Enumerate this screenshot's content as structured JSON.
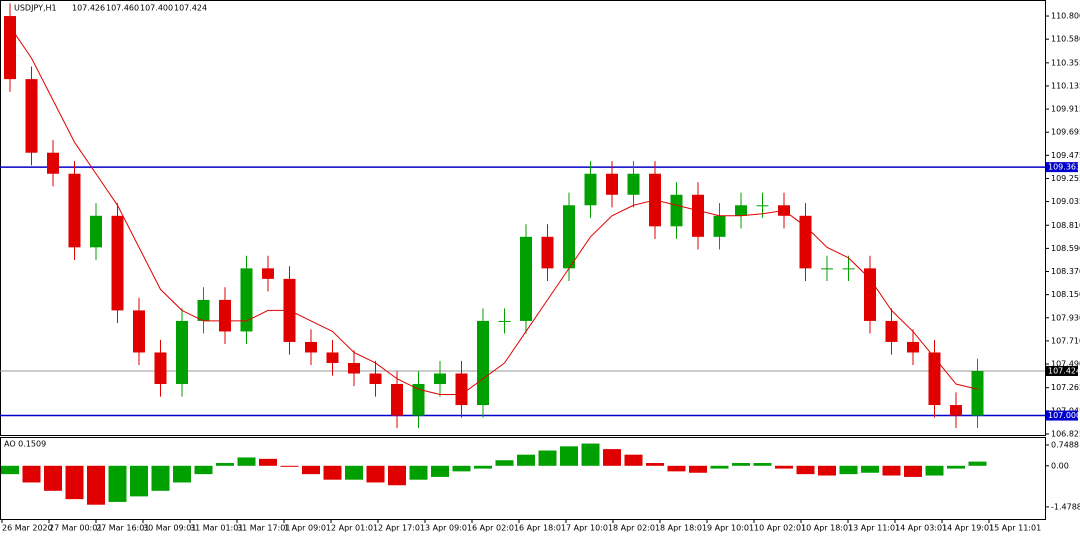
{
  "chart_data": [
    {
      "type": "candlestick",
      "title": "USDJPY,H1",
      "header_quotes": [
        "107.426",
        "107.460",
        "107.400",
        "107.424"
      ],
      "bull_color": "#00a000",
      "bear_color": "#e00000",
      "open": [
        110.8,
        110.2,
        109.5,
        109.3,
        108.6,
        108.9,
        108.0,
        107.6,
        107.3,
        107.9,
        108.1,
        107.8,
        108.4,
        108.3,
        107.7,
        107.6,
        107.5,
        107.4,
        107.3,
        107.0,
        107.3,
        107.4,
        107.1,
        107.9,
        107.9,
        108.7,
        108.4,
        109.0,
        109.3,
        109.1,
        109.3,
        108.8,
        109.1,
        108.7,
        108.9,
        109.0,
        109.0,
        108.9,
        108.4,
        108.4,
        108.4,
        107.9,
        107.7,
        107.6,
        107.1,
        107.0
      ],
      "high": [
        110.92,
        110.32,
        109.62,
        109.42,
        109.02,
        109.02,
        108.12,
        107.72,
        108.02,
        108.22,
        108.22,
        108.52,
        108.52,
        108.42,
        107.82,
        107.72,
        107.62,
        107.52,
        107.42,
        107.42,
        107.52,
        107.52,
        108.02,
        108.02,
        108.82,
        108.82,
        109.12,
        109.42,
        109.42,
        109.42,
        109.42,
        109.22,
        109.22,
        109.02,
        109.12,
        109.12,
        109.12,
        109.02,
        108.52,
        108.52,
        108.52,
        108.02,
        107.82,
        107.72,
        107.22,
        107.54
      ],
      "low": [
        110.08,
        109.38,
        109.18,
        108.48,
        108.48,
        107.88,
        107.48,
        107.18,
        107.18,
        107.78,
        107.68,
        107.68,
        108.18,
        107.58,
        107.48,
        107.38,
        107.28,
        107.18,
        106.88,
        106.88,
        107.18,
        106.98,
        106.98,
        107.78,
        107.78,
        108.28,
        108.28,
        108.88,
        108.98,
        108.98,
        108.68,
        108.68,
        108.58,
        108.58,
        108.78,
        108.88,
        108.78,
        108.28,
        108.28,
        108.28,
        107.78,
        107.58,
        107.48,
        106.98,
        106.88,
        106.88
      ],
      "close": [
        110.2,
        109.5,
        109.3,
        108.6,
        108.9,
        108.0,
        107.6,
        107.3,
        107.9,
        108.1,
        107.8,
        108.4,
        108.3,
        107.7,
        107.6,
        107.5,
        107.4,
        107.3,
        107.0,
        107.3,
        107.4,
        107.1,
        107.9,
        107.9,
        108.7,
        108.4,
        109.0,
        109.3,
        109.1,
        109.3,
        108.8,
        109.1,
        108.7,
        108.9,
        109.0,
        109.0,
        108.9,
        108.4,
        108.4,
        108.4,
        107.9,
        107.7,
        107.6,
        107.1,
        107.0,
        107.424
      ],
      "ma": [
        110.7,
        110.4,
        110.0,
        109.6,
        109.3,
        109.0,
        108.6,
        108.2,
        108.0,
        107.9,
        107.9,
        107.9,
        108.0,
        108.0,
        107.9,
        107.8,
        107.6,
        107.5,
        107.35,
        107.25,
        107.2,
        107.2,
        107.35,
        107.5,
        107.8,
        108.1,
        108.4,
        108.7,
        108.9,
        109.0,
        109.05,
        109.0,
        108.95,
        108.9,
        108.9,
        108.92,
        108.95,
        108.8,
        108.6,
        108.5,
        108.3,
        108.0,
        107.8,
        107.55,
        107.3,
        107.25
      ],
      "ma_color": "#e00000",
      "levels": [
        {
          "value": 109.363,
          "label": "109.363"
        },
        {
          "value": 107.0,
          "label": "107.000"
        }
      ],
      "level_color": "#0000cc",
      "current": {
        "value": 107.424,
        "label": "107.424"
      },
      "ylim": [
        106.815,
        110.905
      ],
      "yticks": [
        {
          "value": 110.8,
          "label": "110.800"
        },
        {
          "value": 110.58,
          "label": "110.580"
        },
        110.355,
        {
          "value": 110.135,
          "label": "110.135"
        },
        109.915,
        109.695,
        109.475,
        109.255,
        109.035,
        {
          "value": 108.81,
          "label": "108.810"
        },
        {
          "value": 108.59,
          "label": "108.590"
        },
        {
          "value": 108.37,
          "label": "108.370"
        },
        {
          "value": 108.15,
          "label": "108.150"
        },
        {
          "value": 107.93,
          "label": "107.930"
        },
        {
          "value": 107.71,
          "label": "107.710"
        },
        {
          "value": 107.49,
          "label": "107.490"
        },
        107.265,
        107.045,
        106.825
      ],
      "xlabels": [
        "26 Mar 2020",
        "27 Mar 00:01",
        "27 Mar 16:01",
        "30 Mar 09:01",
        "31 Mar 01:01",
        "31 Mar 17:01",
        "1 Apr 09:01",
        "2 Apr 01:01",
        "2 Apr 17:01",
        "3 Apr 09:01",
        "6 Apr 02:01",
        "6 Apr 18:01",
        "7 Apr 10:01",
        "8 Apr 02:01",
        "8 Apr 18:01",
        "9 Apr 10:01",
        "10 Apr 02:01",
        "10 Apr 18:01",
        "13 Apr 11:01",
        "14 Apr 03:01",
        "14 Apr 19:01",
        "15 Apr 11:01"
      ]
    },
    {
      "type": "ao",
      "title": "AO 0.1509",
      "up_color": "#00a000",
      "down_color": "#e00000",
      "values": [
        -0.3,
        -0.6,
        -0.9,
        -1.2,
        -1.4,
        -1.3,
        -1.1,
        -0.9,
        -0.6,
        -0.3,
        0.1,
        0.3,
        0.25,
        0.0,
        -0.3,
        -0.5,
        -0.5,
        -0.6,
        -0.7,
        -0.5,
        -0.4,
        -0.2,
        -0.1,
        0.2,
        0.4,
        0.55,
        0.7,
        0.8,
        0.6,
        0.4,
        0.1,
        -0.2,
        -0.25,
        -0.1,
        0.1,
        0.1,
        -0.1,
        -0.3,
        -0.35,
        -0.3,
        -0.25,
        -0.35,
        -0.4,
        -0.35,
        -0.1,
        0.1509
      ],
      "ylim": [
        -1.95,
        1.0
      ],
      "yticks": [
        0.7488,
        {
          "value": 0,
          "label": "0.00"
        },
        -1.4788
      ]
    }
  ]
}
